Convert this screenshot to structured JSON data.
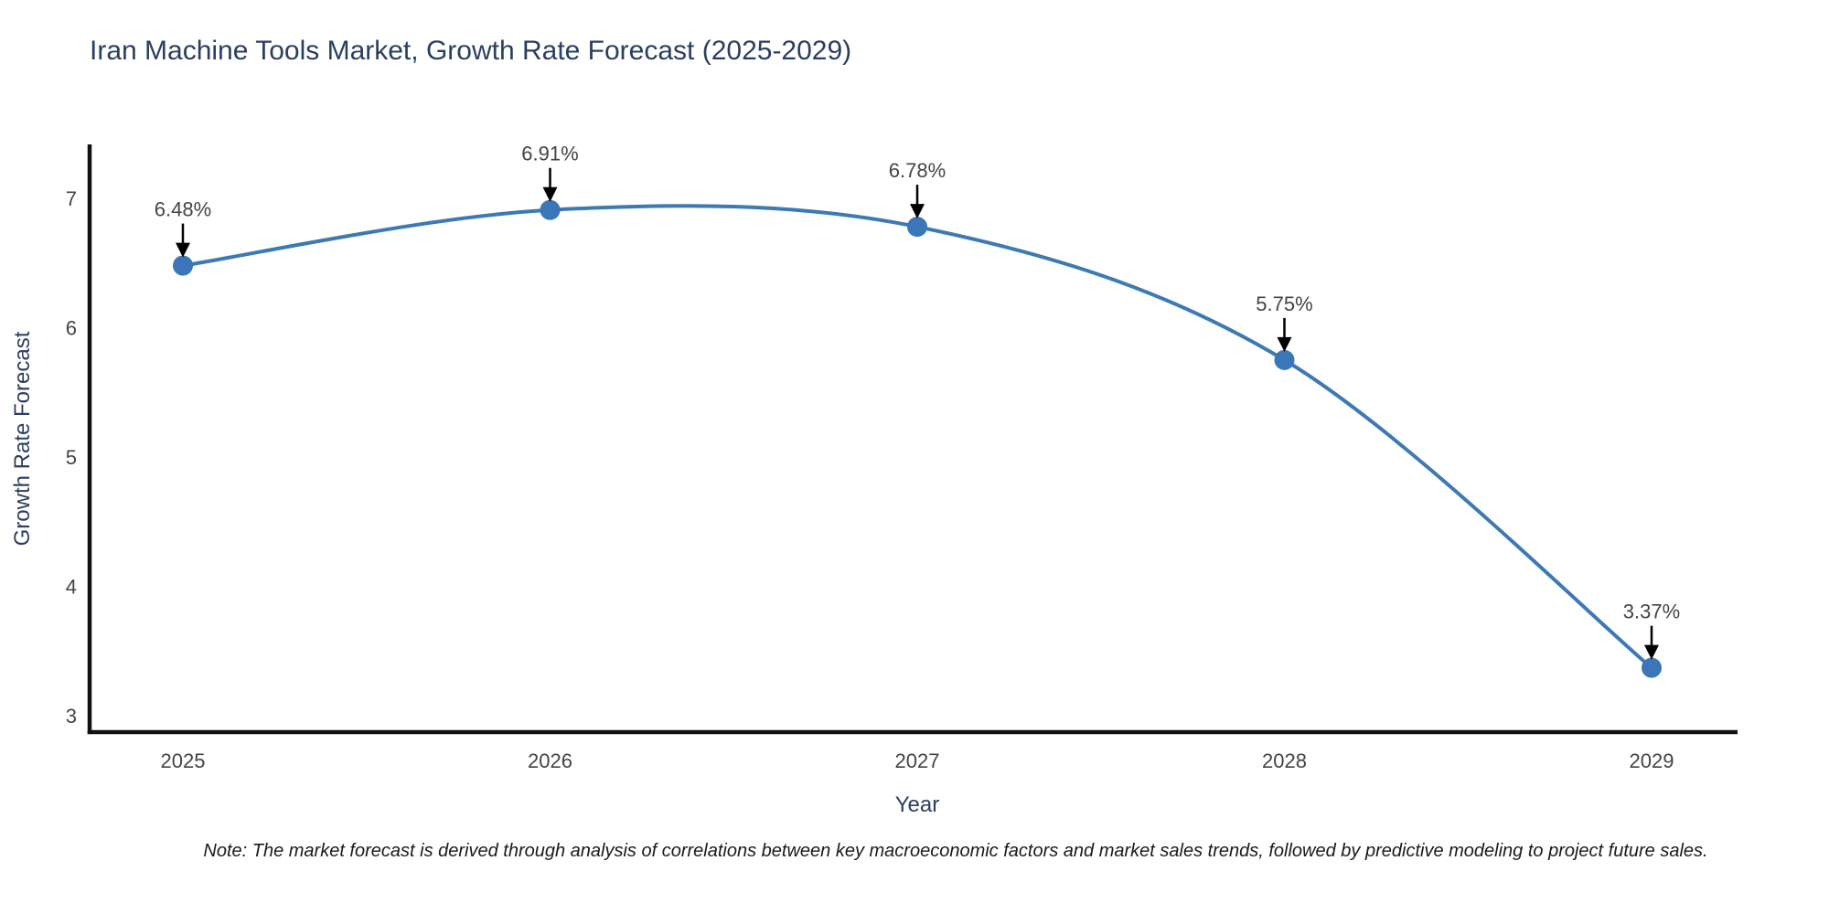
{
  "page": {
    "title": "Iran Machine Tools Market, Growth Rate Forecast (2025-2029)",
    "note": "Note: The market forecast is derived through analysis of correlations between key macroeconomic factors and market sales trends, followed by predictive modeling to project future sales."
  },
  "chart_data": {
    "type": "line",
    "title": "Iran Machine Tools Market, Growth Rate Forecast (2025-2029)",
    "x": [
      2025,
      2026,
      2027,
      2028,
      2029
    ],
    "series": [
      {
        "name": "Growth Rate Forecast",
        "values": [
          6.48,
          6.91,
          6.78,
          5.75,
          3.37
        ]
      }
    ],
    "point_labels": [
      "6.48%",
      "6.91%",
      "6.78%",
      "5.75%",
      "3.37%"
    ],
    "xlabel": "Year",
    "ylabel": "Growth Rate Forecast",
    "xtick_labels": [
      "2025",
      "2026",
      "2027",
      "2028",
      "2029"
    ],
    "ytick_values": [
      7,
      6,
      5,
      4,
      3
    ],
    "ylim": [
      2.87,
      7.4
    ],
    "xlim": [
      2024.74,
      2029.23
    ],
    "grid": false,
    "legend": false,
    "line_shape": "spline",
    "annotation_style": "value labels with black arrows pointing down to each data point",
    "colors": {
      "line": "#3d79b3",
      "marker": "#3a76b8",
      "arrow": "#000000",
      "axis": "#111111",
      "tick_text": "#444444",
      "heading_text": "#2a3f5f"
    }
  }
}
